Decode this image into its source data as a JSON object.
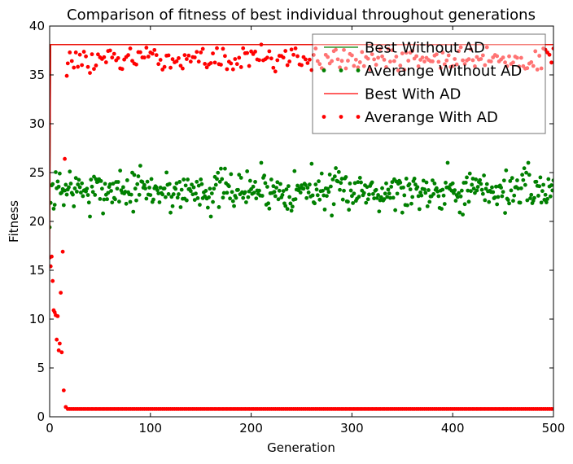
{
  "chart_data": {
    "type": "scatter",
    "title": "Comparison of fitness of best individual throughout generations",
    "xlabel": "Generation",
    "ylabel": "Fitness",
    "xlim": [
      0,
      500
    ],
    "ylim": [
      0,
      40
    ],
    "xticks": [
      0,
      100,
      200,
      300,
      400,
      500
    ],
    "yticks": [
      0,
      5,
      10,
      15,
      20,
      25,
      30,
      35,
      40
    ],
    "grid": false,
    "legend_position": "top-right",
    "series": [
      {
        "name": "Best Without AD",
        "style": "line",
        "color": "#008000",
        "x": [
          0,
          1,
          500
        ],
        "y": [
          19.4,
          38.1,
          38.1
        ]
      },
      {
        "name": "Averange Without AD",
        "style": "dots",
        "color": "#008000",
        "generator": {
          "x_start": 0,
          "x_end": 500,
          "x_step": 1,
          "start_value": 19.4,
          "mean": 23.2,
          "spread": 2.8,
          "seed": 7
        },
        "samples": [
          [
            0,
            19.4
          ],
          [
            1,
            21.9
          ],
          [
            5,
            21.7
          ],
          [
            10,
            24.9
          ],
          [
            20,
            25.1
          ],
          [
            30,
            23.5
          ],
          [
            40,
            20.5
          ],
          [
            50,
            22.3
          ],
          [
            60,
            23.8
          ],
          [
            70,
            25.2
          ],
          [
            80,
            22.0
          ],
          [
            90,
            25.7
          ],
          [
            100,
            22.7
          ],
          [
            120,
            20.9
          ],
          [
            150,
            24.3
          ],
          [
            160,
            20.5
          ],
          [
            170,
            25.4
          ],
          [
            200,
            23.3
          ],
          [
            210,
            26.0
          ],
          [
            240,
            21.1
          ],
          [
            260,
            25.9
          ],
          [
            280,
            20.6
          ],
          [
            300,
            22.6
          ],
          [
            320,
            24.0
          ],
          [
            350,
            20.9
          ],
          [
            380,
            24.2
          ],
          [
            395,
            26.0
          ],
          [
            410,
            20.7
          ],
          [
            440,
            23.0
          ],
          [
            475,
            26.0
          ],
          [
            500,
            24.2
          ]
        ]
      },
      {
        "name": "Best With AD",
        "style": "line",
        "color": "#ff0000",
        "x": [
          0,
          1,
          500
        ],
        "y": [
          16.4,
          38.1,
          38.1
        ]
      },
      {
        "name": "Averange With AD",
        "style": "dots",
        "color": "#ff0000",
        "early_points": [
          [
            0,
            16.3
          ],
          [
            1,
            15.4
          ],
          [
            2,
            16.4
          ],
          [
            3,
            13.9
          ],
          [
            4,
            10.9
          ],
          [
            5,
            10.7
          ],
          [
            6,
            10.4
          ],
          [
            7,
            7.9
          ],
          [
            8,
            10.3
          ],
          [
            9,
            6.8
          ],
          [
            10,
            7.5
          ],
          [
            11,
            12.7
          ],
          [
            12,
            6.6
          ],
          [
            13,
            16.9
          ],
          [
            14,
            2.7
          ],
          [
            15,
            26.4
          ],
          [
            16,
            1.0
          ],
          [
            17,
            34.9
          ]
        ],
        "low_band": {
          "x_start": 18,
          "x_end": 500,
          "x_step": 2,
          "value": 0.8
        },
        "high_band": {
          "x_start": 18,
          "x_end": 500,
          "x_step": 2,
          "mean": 36.6,
          "spread": 1.0,
          "seed": 13
        },
        "samples": [
          [
            20,
            37.3
          ],
          [
            25,
            35.1
          ],
          [
            40,
            35.2
          ],
          [
            60,
            37.5
          ],
          [
            100,
            37.3
          ],
          [
            150,
            37.3
          ],
          [
            200,
            37.4
          ],
          [
            210,
            38.1
          ],
          [
            250,
            36.0
          ],
          [
            300,
            37.0
          ],
          [
            350,
            37.2
          ],
          [
            400,
            35.9
          ],
          [
            430,
            37.0
          ],
          [
            455,
            38.1
          ],
          [
            490,
            37.7
          ],
          [
            500,
            37.7
          ]
        ]
      }
    ]
  }
}
